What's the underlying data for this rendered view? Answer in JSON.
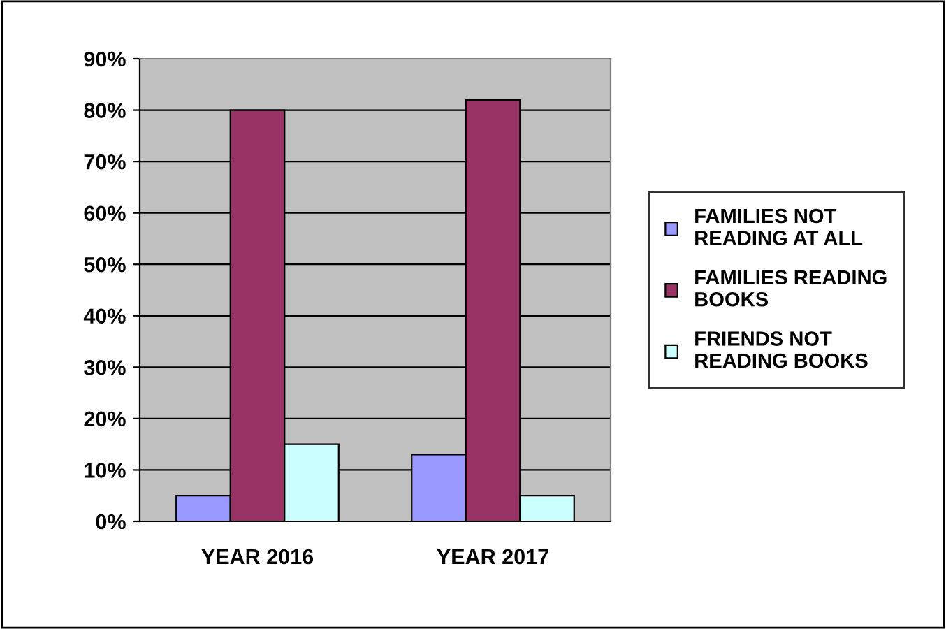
{
  "chart_data": {
    "type": "bar",
    "categories": [
      "YEAR 2016",
      "YEAR 2017"
    ],
    "series": [
      {
        "name": "FAMILIES NOT\nREADING AT ALL",
        "color": "#9999ff",
        "values": [
          5,
          13
        ]
      },
      {
        "name": "FAMILIES READING\nBOOKS",
        "color": "#993366",
        "values": [
          80,
          82
        ]
      },
      {
        "name": "FRIENDS NOT\nREADING BOOKS",
        "color": "#ccffff",
        "values": [
          15,
          5
        ]
      }
    ],
    "ylim": [
      0,
      90
    ],
    "yticks": [
      {
        "value": 0,
        "label": "0%"
      },
      {
        "value": 10,
        "label": "10%"
      },
      {
        "value": 20,
        "label": "20%"
      },
      {
        "value": 30,
        "label": "30%"
      },
      {
        "value": 40,
        "label": "40%"
      },
      {
        "value": 50,
        "label": "50%"
      },
      {
        "value": 60,
        "label": "60%"
      },
      {
        "value": 70,
        "label": "70%"
      },
      {
        "value": 80,
        "label": "80%"
      },
      {
        "value": 90,
        "label": "90%"
      }
    ],
    "grid": "y",
    "legend": "right"
  }
}
